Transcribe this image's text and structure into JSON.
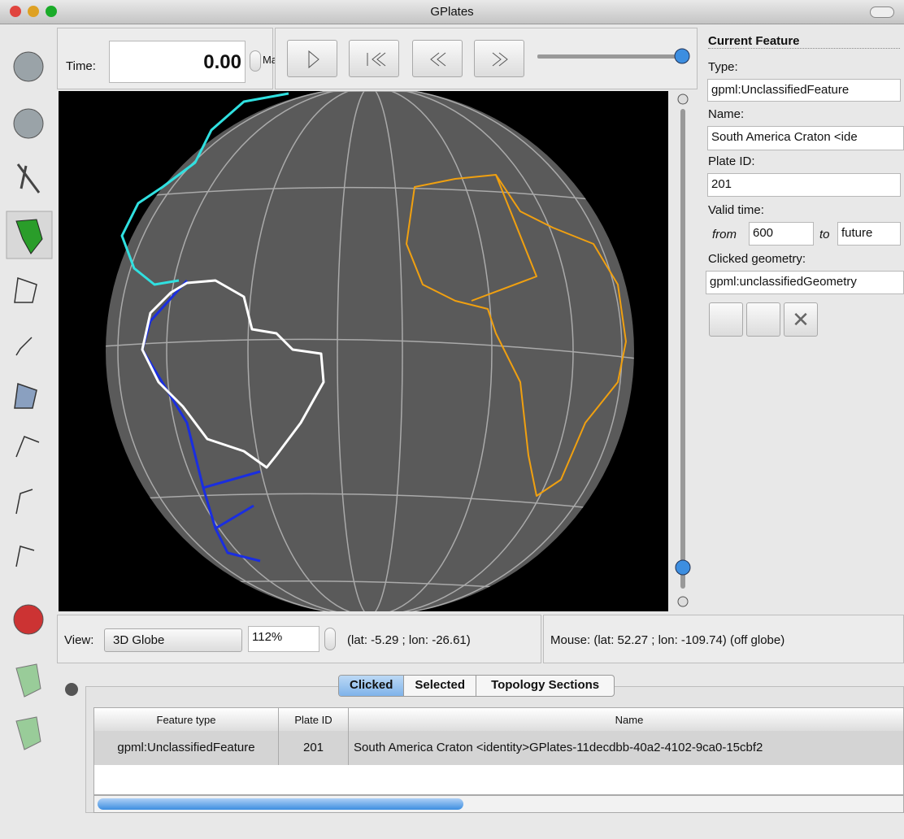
{
  "window": {
    "title": "GPlates"
  },
  "time_panel": {
    "label": "Time:",
    "value": "0.00",
    "unit": "Ma"
  },
  "current_feature": {
    "heading": "Current Feature",
    "type_label": "Type:",
    "type": "gpml:UnclassifiedFeature",
    "name_label": "Name:",
    "name": "South America Craton <ide",
    "plate_id_label": "Plate ID:",
    "plate_id": "201",
    "valid_time_label": "Valid time:",
    "from_label": "from",
    "from": "600",
    "to_label": "to",
    "to": "future",
    "clicked_geometry_label": "Clicked geometry:",
    "clicked_geometry": "gpml:unclassifiedGeometry"
  },
  "view_bar": {
    "label": "View:",
    "projection": "3D Globe",
    "zoom": "112%",
    "camera": "(lat: -5.29 ; lon: -26.61)",
    "mouse": "Mouse: (lat: 52.27 ; lon: -109.74) (off globe)"
  },
  "tabs": [
    "Clicked",
    "Selected",
    "Topology Sections"
  ],
  "table": {
    "columns": [
      "Feature type",
      "Plate ID",
      "Name"
    ],
    "rows": [
      [
        "gpml:UnclassifiedFeature",
        "201",
        "South America Craton <identity>GPlates-11decdbb-40a2-4102-9ca0-15cbf2"
      ]
    ]
  }
}
